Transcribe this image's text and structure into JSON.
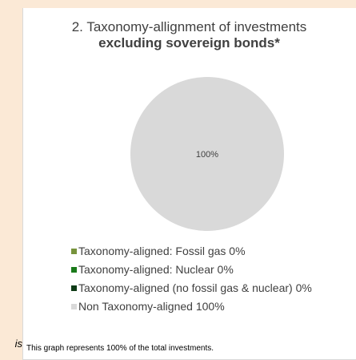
{
  "side_fragment": "is",
  "footnote": "This graph represents 100% of the total investments.",
  "chart_data": {
    "type": "pie",
    "title": "2. Taxonomy-allignment of investments",
    "subtitle": "excluding sovereign bonds*",
    "slices": [
      {
        "label": "Taxonomy-aligned: Fossil gas 0%",
        "value": 0,
        "color": "#77933c"
      },
      {
        "label": "Taxonomy-aligned: Nuclear 0%",
        "value": 0,
        "color": "#1a7a1a"
      },
      {
        "label": "Taxonomy-aligned (no fossil gas & nuclear) 0%",
        "value": 0,
        "color": "#0e3b17"
      },
      {
        "label": "Non Taxonomy-aligned 100%",
        "value": 100,
        "color": "#d9d9d9"
      }
    ],
    "data_labels": [
      "100%"
    ],
    "legend_position": "bottom"
  }
}
